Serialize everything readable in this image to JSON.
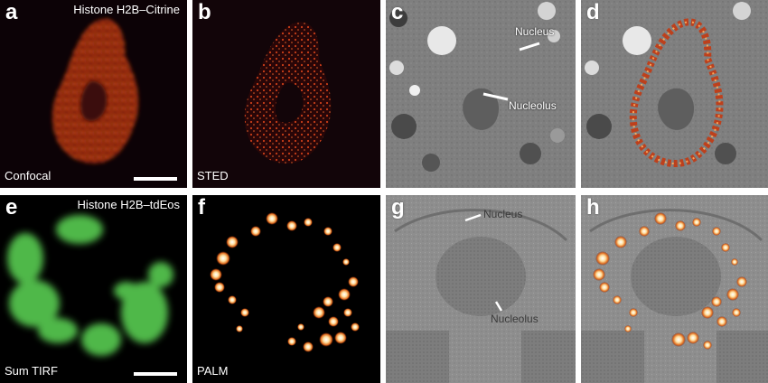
{
  "panels": {
    "a": {
      "letter": "a",
      "top_label": "Histone H2B–Citrine",
      "bottom_label": "Confocal"
    },
    "b": {
      "letter": "b",
      "bottom_label": "STED"
    },
    "c": {
      "letter": "c",
      "annotations": [
        "Nucleus",
        "Nucleolus"
      ]
    },
    "d": {
      "letter": "d"
    },
    "e": {
      "letter": "e",
      "top_label": "Histone H2B–tdEos",
      "bottom_label": "Sum TIRF"
    },
    "f": {
      "letter": "f",
      "bottom_label": "PALM"
    },
    "g": {
      "letter": "g",
      "annotations": [
        "Nucleus",
        "Nucleolus"
      ]
    },
    "h": {
      "letter": "h"
    }
  },
  "colors": {
    "hot_signal": "#c43a12",
    "hot_bright": "#ffe0a0",
    "green_signal": "#4fb84a",
    "em_gray": "#8a8a8a",
    "background_dark": "#000000"
  }
}
